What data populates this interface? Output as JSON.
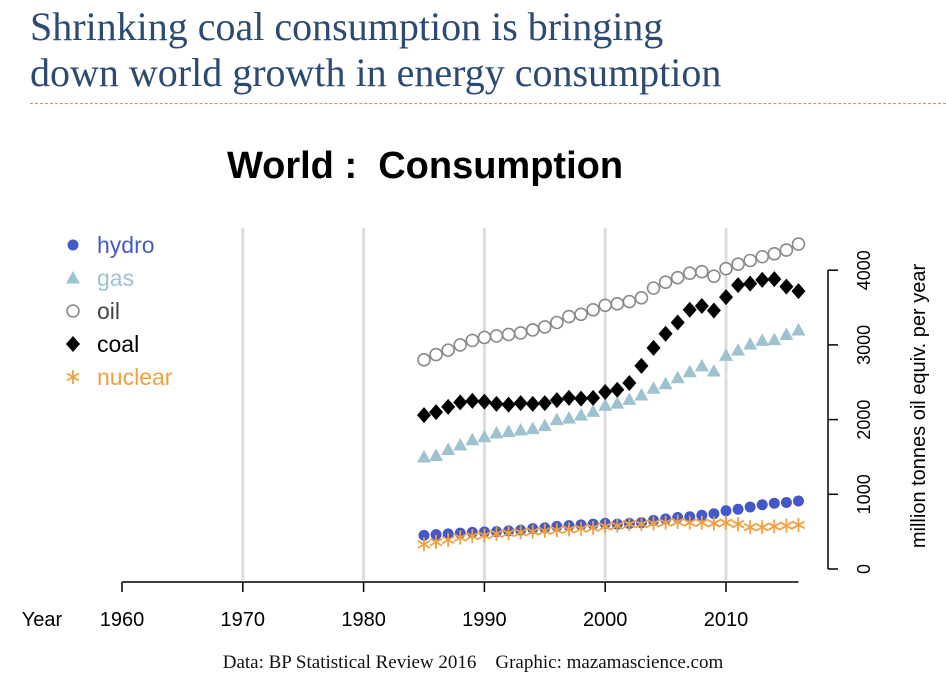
{
  "slide": {
    "title_lines": [
      "Shrinking coal consumption is bringing",
      "down world growth in energy consumption"
    ],
    "footer": "Data: BP Statistical Review 2016    Graphic: mazamascience.com",
    "title_color": "#2d4a73"
  },
  "chart_data": {
    "type": "scatter",
    "title": "World :  Consumption",
    "xlabel": "Year",
    "ylabel": "million tonnes oil equiv. per year",
    "xlim": [
      1960,
      2016
    ],
    "ylim": [
      0,
      4000
    ],
    "x_ticks": [
      1960,
      1970,
      1980,
      1990,
      2000,
      2010
    ],
    "y_ticks": [
      0,
      1000,
      2000,
      3000,
      4000
    ],
    "grid": "vertical",
    "legend_position": "top-left",
    "x": [
      1985,
      1986,
      1987,
      1988,
      1989,
      1990,
      1991,
      1992,
      1993,
      1994,
      1995,
      1996,
      1997,
      1998,
      1999,
      2000,
      2001,
      2002,
      2003,
      2004,
      2005,
      2006,
      2007,
      2008,
      2009,
      2010,
      2011,
      2012,
      2013,
      2014,
      2015,
      2016
    ],
    "series": [
      {
        "name": "hydro",
        "marker": "filled-circle",
        "color": "#4459c8",
        "values": [
          450,
          460,
          470,
          480,
          490,
          495,
          500,
          510,
          520,
          540,
          550,
          570,
          580,
          590,
          600,
          610,
          600,
          610,
          620,
          650,
          670,
          690,
          700,
          720,
          740,
          780,
          800,
          830,
          860,
          880,
          890,
          910
        ]
      },
      {
        "name": "gas",
        "marker": "triangle",
        "color": "#9dc3d0",
        "values": [
          1500,
          1520,
          1600,
          1660,
          1730,
          1770,
          1820,
          1840,
          1860,
          1880,
          1920,
          2000,
          2020,
          2060,
          2110,
          2190,
          2220,
          2270,
          2330,
          2420,
          2480,
          2560,
          2640,
          2720,
          2650,
          2860,
          2930,
          3010,
          3060,
          3070,
          3140,
          3200
        ]
      },
      {
        "name": "oil",
        "marker": "open-circle",
        "color": "#8a8a8a",
        "values": [
          2800,
          2870,
          2930,
          3000,
          3060,
          3100,
          3120,
          3140,
          3160,
          3200,
          3240,
          3300,
          3380,
          3410,
          3470,
          3530,
          3550,
          3580,
          3630,
          3760,
          3840,
          3900,
          3960,
          3980,
          3920,
          4020,
          4080,
          4130,
          4180,
          4220,
          4270,
          4350
        ]
      },
      {
        "name": "coal",
        "marker": "filled-diamond",
        "color": "#000000",
        "values": [
          2060,
          2100,
          2170,
          2230,
          2250,
          2240,
          2210,
          2200,
          2220,
          2210,
          2220,
          2260,
          2290,
          2280,
          2290,
          2370,
          2400,
          2490,
          2720,
          2960,
          3150,
          3300,
          3470,
          3520,
          3460,
          3640,
          3800,
          3820,
          3870,
          3880,
          3780,
          3720
        ]
      },
      {
        "name": "nuclear",
        "marker": "asterisk",
        "color": "#f0a040",
        "values": [
          330,
          360,
          390,
          420,
          440,
          450,
          470,
          480,
          490,
          500,
          510,
          520,
          530,
          540,
          550,
          570,
          580,
          600,
          600,
          610,
          620,
          630,
          620,
          620,
          610,
          620,
          600,
          560,
          560,
          570,
          580,
          590
        ]
      }
    ]
  }
}
